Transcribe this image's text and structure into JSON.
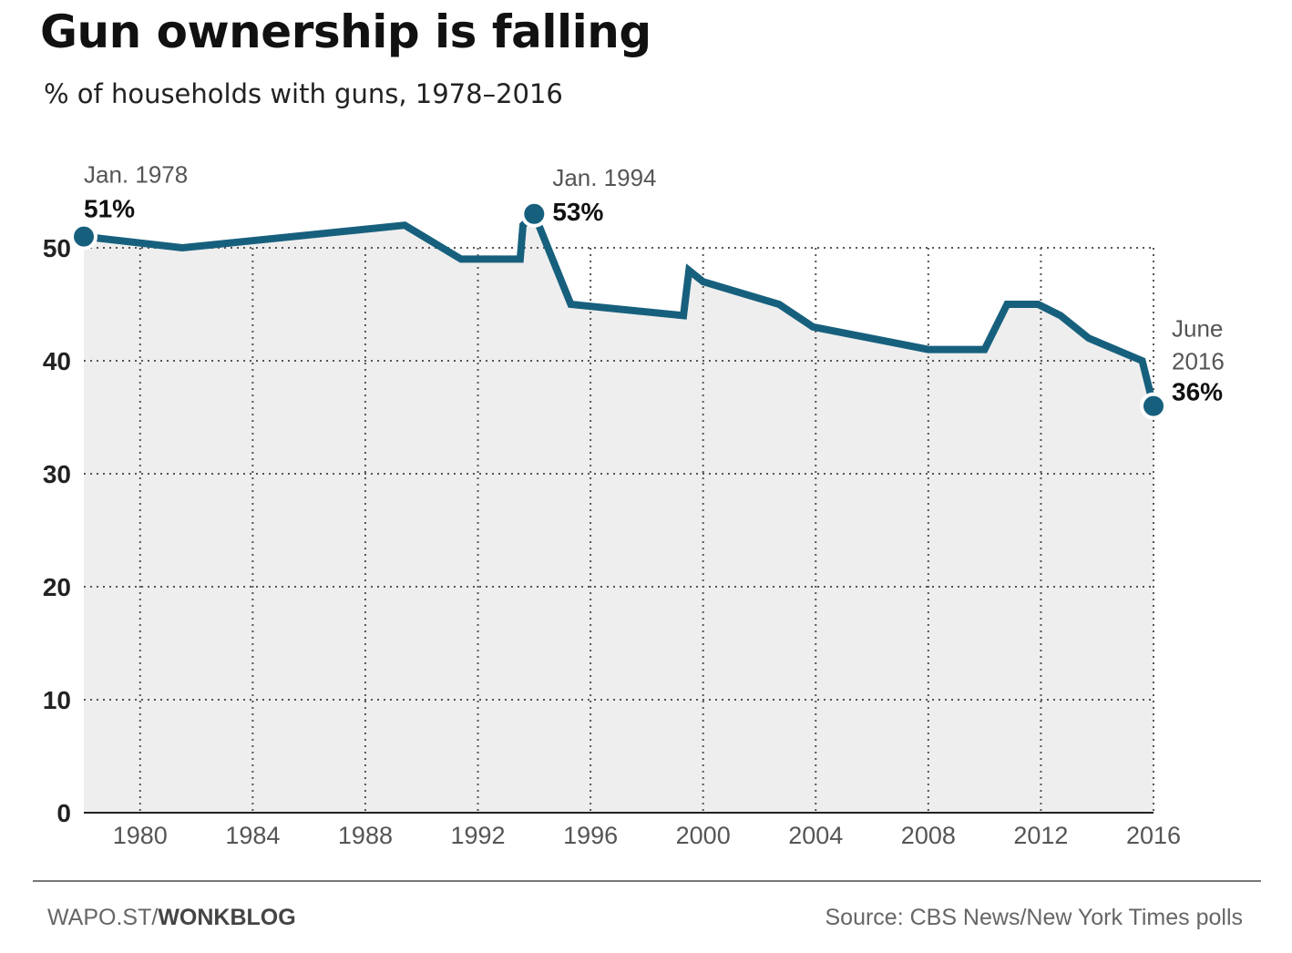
{
  "chart_data": {
    "type": "line",
    "title": "Gun ownership is falling",
    "subtitle": "% of households with guns, 1978–2016",
    "xlabel": "",
    "ylabel": "",
    "xlim": [
      1978.5,
      2016.5
    ],
    "ylim": [
      0,
      53
    ],
    "x_ticks": [
      1980,
      1984,
      1988,
      1992,
      1996,
      2000,
      2004,
      2008,
      2012,
      2016
    ],
    "y_ticks": [
      0,
      10,
      20,
      30,
      40,
      50
    ],
    "grid": true,
    "series": [
      {
        "color": "#17607d",
        "x": [
          1978.0,
          1981.5,
          1989.4,
          1991.4,
          1993.5,
          1993.6,
          1994.0,
          1995.3,
          1999.3,
          1999.4,
          1999.5,
          2000.0,
          2002.7,
          2003.9,
          2008.0,
          2010.0,
          2010.8,
          2011.9,
          2012.7,
          2013.7,
          2015.6,
          2016.0
        ],
        "y": [
          51,
          50,
          52,
          49,
          49,
          52,
          53,
          45,
          44,
          46,
          48,
          47,
          45,
          43,
          41,
          41,
          45,
          45,
          44,
          42,
          40,
          36
        ]
      }
    ],
    "annotations": [
      {
        "date": "Jan. 1978",
        "value": "51%",
        "x": 1978.0,
        "y": 51
      },
      {
        "date": "Jan. 1994",
        "value": "53%",
        "x": 1994.0,
        "y": 53
      },
      {
        "date_lines": [
          "June",
          "2016"
        ],
        "value": "36%",
        "x": 2016.0,
        "y": 36
      }
    ]
  },
  "footer": {
    "credit_prefix": "WAPO.ST/",
    "credit_brand": "WONKBLOG",
    "source": "Source: CBS News/New York Times polls"
  }
}
